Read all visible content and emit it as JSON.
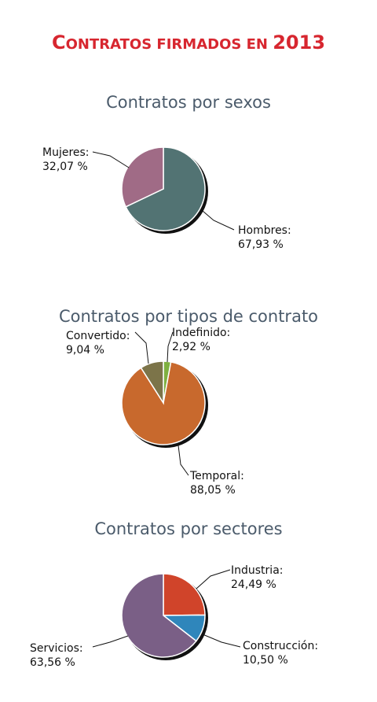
{
  "page": {
    "title": "Contratos firmados en 2013"
  },
  "chart_data": [
    {
      "type": "pie",
      "title": "Contratos por sexos",
      "slices": [
        {
          "name": "Mujeres",
          "value": 32.07,
          "label": "Mujeres:",
          "value_label": "32,07 %",
          "color": "#a06b86"
        },
        {
          "name": "Hombres",
          "value": 67.93,
          "label": "Hombres:",
          "value_label": "67,93 %",
          "color": "#527373"
        }
      ]
    },
    {
      "type": "pie",
      "title": "Contratos por tipos de contrato",
      "slices": [
        {
          "name": "Indefinido",
          "value": 2.92,
          "label": "Indefinido:",
          "value_label": "2,92 %",
          "color": "#7fb040"
        },
        {
          "name": "Temporal",
          "value": 88.05,
          "label": "Temporal:",
          "value_label": "88,05 %",
          "color": "#c8692d"
        },
        {
          "name": "Convertido",
          "value": 9.04,
          "label": "Convertido:",
          "value_label": "9,04 %",
          "color": "#7c7449"
        }
      ]
    },
    {
      "type": "pie",
      "title": "Contratos por sectores",
      "slices": [
        {
          "name": "Industria",
          "value": 24.49,
          "label": "Industria:",
          "value_label": "24,49 %",
          "color": "#d0442a"
        },
        {
          "name": "Construcción",
          "value": 10.5,
          "label": "Construcción:",
          "value_label": "10,50 %",
          "color": "#2f86bb"
        },
        {
          "name": "Servicios",
          "value": 63.56,
          "label": "Servicios:",
          "value_label": "63,56 %",
          "color": "#7a5f86"
        }
      ]
    }
  ]
}
